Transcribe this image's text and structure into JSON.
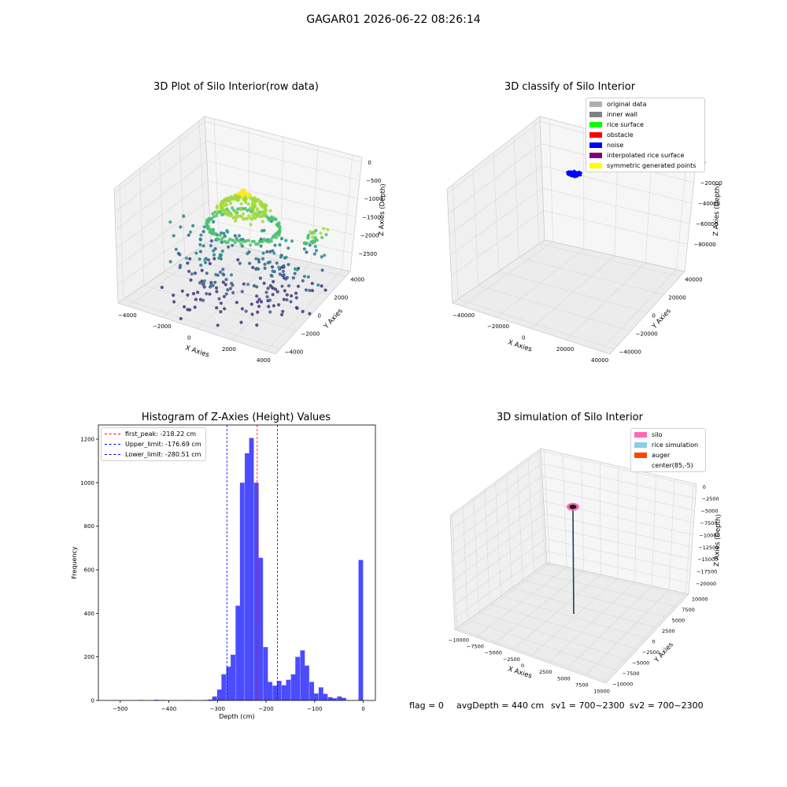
{
  "figure": {
    "suptitle": "GAGAR01 2026-06-22 08:26:14",
    "footer": {
      "flag": "flag = 0",
      "avg_depth": "avgDepth = 440 cm",
      "sv1": "sv1 = 700~2300",
      "sv2": "sv2 = 700~2300"
    }
  },
  "panel1": {
    "title": "3D Plot of Silo Interior(row data)",
    "xlabel": "X Axies",
    "ylabel": "Y Axies",
    "zlabel": "Z Axies (Depth)",
    "xticks": [
      "−4000",
      "−2000",
      "0",
      "2000",
      "4000"
    ],
    "yticks": [
      "−4000",
      "−2000",
      "0",
      "2000",
      "4000"
    ],
    "zticks": [
      "0",
      "−500",
      "−1000",
      "−1500",
      "−2000",
      "−2500"
    ],
    "colormap": [
      "#46327e",
      "#365c8d",
      "#277f8e",
      "#1fa187",
      "#4ac16d",
      "#a0da39",
      "#fde725"
    ]
  },
  "panel2": {
    "title": "3D classify of Silo Interior",
    "xlabel": "X Axies",
    "ylabel": "Y Axies",
    "zlabel": "Z Axies (Depth)",
    "xticks": [
      "−40000",
      "−20000",
      "0",
      "20000",
      "40000"
    ],
    "yticks": [
      "−40000",
      "−20000",
      "0",
      "20000",
      "40000"
    ],
    "zticks": [
      "0",
      "−20000",
      "−40000",
      "−60000",
      "−80000"
    ],
    "legend": [
      {
        "label": "original data",
        "color": "#b0b0b0"
      },
      {
        "label": "inner wall",
        "color": "#808080"
      },
      {
        "label": "rice surface",
        "color": "#00ff00"
      },
      {
        "label": "obstacle",
        "color": "#ff0000"
      },
      {
        "label": "noise",
        "color": "#0000ff"
      },
      {
        "label": "interpolated rice surface",
        "color": "#800080"
      },
      {
        "label": "symmetric generated points",
        "color": "#ffff00"
      }
    ]
  },
  "panel3": {
    "title": "Histogram of Z-Axies (Height) Values",
    "legend": [
      {
        "label": "first_peak: -218.22 cm",
        "color": "#ff0000"
      },
      {
        "label": "Upper_limit: -176.69 cm",
        "color": "#0000ff"
      },
      {
        "label": "Lower_limit: -280.51 cm",
        "color": "#0000ff"
      }
    ]
  },
  "panel4": {
    "title": "3D simulation of Silo Interior",
    "xlabel": "X Axies",
    "ylabel": "Y Axies",
    "zlabel": "Z Axies (Depth)",
    "xticks": [
      "−10000",
      "−7500",
      "−5000",
      "−2500",
      "0",
      "2500",
      "5000",
      "7500",
      "10000"
    ],
    "yticks": [
      "−10000",
      "−7500",
      "−5000",
      "−2500",
      "0",
      "2500",
      "5000",
      "7500",
      "10000"
    ],
    "zticks": [
      "0",
      "−2500",
      "−5000",
      "−7500",
      "−10000",
      "−12500",
      "−15000",
      "−17500",
      "−20000"
    ],
    "legend": [
      {
        "label": "silo",
        "color": "#ff69b4"
      },
      {
        "label": "rice simulation",
        "color": "#87ceeb"
      },
      {
        "label": "auger",
        "color": "#ff4500"
      },
      {
        "label": "center(85,-5)",
        "color": ""
      }
    ]
  },
  "chart_data": [
    {
      "type": "scatter",
      "title": "3D Plot of Silo Interior(row data)",
      "xlabel": "X Axies",
      "ylabel": "Y Axies",
      "zlabel": "Z Axies (Depth)",
      "xlim": [
        -4500,
        4500
      ],
      "ylim": [
        -4500,
        4500
      ],
      "zlim": [
        -2700,
        0
      ],
      "grid": true,
      "colored_by": "z",
      "series": [
        {
          "values": [
            {
              "x": 0,
              "y": 300,
              "z": -450
            },
            {
              "x": 400,
              "y": -200,
              "z": -420
            },
            {
              "x": -600,
              "y": 500,
              "z": -500
            },
            {
              "x": 200,
              "y": 700,
              "z": -480
            },
            {
              "x": -1500,
              "y": -1200,
              "z": -1050
            },
            {
              "x": 1500,
              "y": 1200,
              "z": -1050
            },
            {
              "x": 2000,
              "y": -500,
              "z": -1100
            },
            {
              "x": -2000,
              "y": 800,
              "z": -1100
            },
            {
              "x": 3500,
              "y": 1500,
              "z": -1200
            },
            {
              "x": -3000,
              "y": -1000,
              "z": -1800
            },
            {
              "x": 1000,
              "y": -3000,
              "z": -2100
            },
            {
              "x": 2500,
              "y": 2500,
              "z": -1900
            },
            {
              "x": -2500,
              "y": 2800,
              "z": -1700
            },
            {
              "x": 3500,
              "y": -3000,
              "z": -2200
            },
            {
              "x": -500,
              "y": -1000,
              "z": -2500
            },
            {
              "x": 0,
              "y": -2500,
              "z": -2400
            }
          ]
        }
      ]
    },
    {
      "type": "scatter",
      "title": "3D classify of Silo Interior",
      "xlabel": "X Axies",
      "ylabel": "Y Axies",
      "zlabel": "Z Axies (Depth)",
      "xlim": [
        -45000,
        45000
      ],
      "ylim": [
        -45000,
        45000
      ],
      "zlim": [
        -90000,
        0
      ],
      "grid": true,
      "legend_position": "upper-right",
      "series": [
        {
          "name": "noise",
          "values": [
            {
              "x": -1500,
              "y": 1000,
              "z": -500
            },
            {
              "x": 0,
              "y": 0,
              "z": -500
            },
            {
              "x": 1500,
              "y": -1000,
              "z": -500
            },
            {
              "x": 500,
              "y": 2000,
              "z": -800
            }
          ]
        }
      ]
    },
    {
      "type": "bar",
      "title": "Histogram of Z-Axies (Height) Values",
      "xlabel": "Depth (cm)",
      "ylabel": "Frequency",
      "xlim": [
        -545,
        25
      ],
      "ylim": [
        0,
        1265
      ],
      "xticks": [
        -500,
        -400,
        -300,
        -200,
        -100,
        0
      ],
      "yticks": [
        0,
        200,
        400,
        600,
        800,
        1000,
        1200
      ],
      "bin_width": 9.5,
      "bins": [
        {
          "x": -458,
          "count": 2
        },
        {
          "x": -425,
          "count": 3
        },
        {
          "x": -412,
          "count": 2
        },
        {
          "x": -362,
          "count": 1
        },
        {
          "x": -335,
          "count": 1
        },
        {
          "x": -325,
          "count": 2
        },
        {
          "x": -315,
          "count": 4
        },
        {
          "x": -306,
          "count": 18
        },
        {
          "x": -296,
          "count": 50
        },
        {
          "x": -287,
          "count": 120
        },
        {
          "x": -277,
          "count": 155
        },
        {
          "x": -268,
          "count": 210
        },
        {
          "x": -258,
          "count": 435
        },
        {
          "x": -249,
          "count": 1000
        },
        {
          "x": -239,
          "count": 1135
        },
        {
          "x": -230,
          "count": 1205
        },
        {
          "x": -220,
          "count": 1000
        },
        {
          "x": -211,
          "count": 655
        },
        {
          "x": -201,
          "count": 245
        },
        {
          "x": -192,
          "count": 85
        },
        {
          "x": -182,
          "count": 68
        },
        {
          "x": -173,
          "count": 90
        },
        {
          "x": -163,
          "count": 70
        },
        {
          "x": -154,
          "count": 95
        },
        {
          "x": -144,
          "count": 120
        },
        {
          "x": -135,
          "count": 200
        },
        {
          "x": -125,
          "count": 230
        },
        {
          "x": -116,
          "count": 160
        },
        {
          "x": -106,
          "count": 85
        },
        {
          "x": -97,
          "count": 32
        },
        {
          "x": -87,
          "count": 60
        },
        {
          "x": -78,
          "count": 30
        },
        {
          "x": -68,
          "count": 15
        },
        {
          "x": -59,
          "count": 10
        },
        {
          "x": -49,
          "count": 18
        },
        {
          "x": -40,
          "count": 12
        },
        {
          "x": -5,
          "count": 645
        }
      ],
      "vlines": [
        {
          "name": "first_peak",
          "x": -218.22,
          "color": "#ff0000"
        },
        {
          "name": "Upper_limit",
          "x": -176.69,
          "color": "#0000ff"
        },
        {
          "name": "Lower_limit",
          "x": -280.51,
          "color": "#0000ff"
        }
      ],
      "legend_position": "upper-left",
      "bar_color": "#4b4bff"
    },
    {
      "type": "scatter",
      "title": "3D simulation of Silo Interior",
      "xlabel": "X Axies",
      "ylabel": "Y Axies",
      "zlabel": "Z Axies (Depth)",
      "xlim": [
        -10000,
        10000
      ],
      "ylim": [
        -10000,
        10000
      ],
      "zlim": [
        -21000,
        0
      ],
      "grid": true,
      "legend_position": "upper-right",
      "series": [
        {
          "name": "silo",
          "values": [
            {
              "x": 85,
              "y": -5,
              "z": -2500
            }
          ]
        },
        {
          "name": "auger",
          "values": [
            {
              "x": 85,
              "y": -5,
              "z": -2500
            },
            {
              "x": 85,
              "y": -5,
              "z": -20000
            }
          ]
        }
      ]
    }
  ]
}
